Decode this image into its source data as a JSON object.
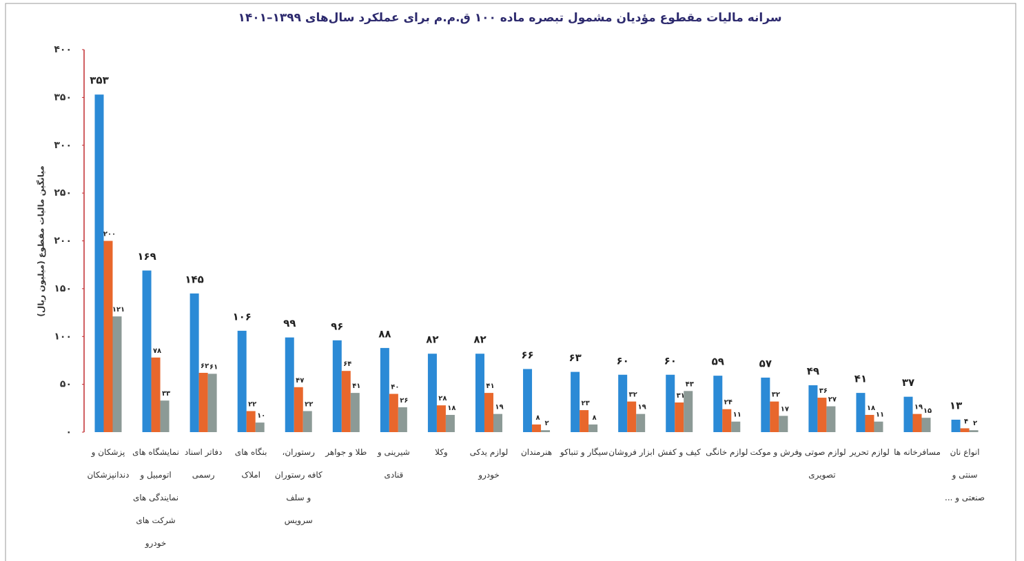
{
  "chart_data": {
    "type": "bar",
    "title": "سرانه مالیات مقطوع مؤدیان مشمول تبصره ماده ۱۰۰ ق.م.م برای عملکرد سال‌های ۱۳۹۹–۱۴۰۱",
    "y_label": "میانگین مالیات مقطوع (میلیون ریال)",
    "categories": [
      "پزشکان و دندانپزشکان",
      "نمایشگاه های اتومبیل و نمایندگی های شرکت های خودرو",
      "دفاتر اسناد رسمی",
      "بنگاه های املاک",
      "رستوران، کافه رستوران و سلف سرویس",
      "طلا و جواهر",
      "شیرینی و قنادی",
      "وکلا",
      "لوازم یدکی خودرو",
      "هنرمندان",
      "سیگار و تنباکو",
      "ابزار فروشان",
      "کیف و کفش",
      "لوازم خانگی",
      "فرش و موکت",
      "لوازم صوتی و تصویری",
      "لوازم تحریر",
      "مسافرخانه ها",
      "انواع نان سنتی و صنعتی و ..."
    ],
    "series": [
      {
        "color": "#2b8ad6",
        "values": [
          353,
          169,
          145,
          106,
          99,
          96,
          88,
          82,
          82,
          66,
          63,
          60,
          60,
          59,
          57,
          49,
          41,
          37,
          13
        ],
        "value_labels": [
          "۳۵۳",
          "۱۶۹",
          "۱۴۵",
          "۱۰۶",
          "۹۹",
          "۹۶",
          "۸۸",
          "۸۲",
          "۸۲",
          "۶۶",
          "۶۳",
          "۶۰",
          "۶۰",
          "۵۹",
          "۵۷",
          "۴۹",
          "۴۱",
          "۳۷",
          "۱۳"
        ]
      },
      {
        "color": "#e8672c",
        "values": [
          200,
          78,
          62,
          22,
          47,
          64,
          40,
          28,
          41,
          8,
          23,
          32,
          31,
          24,
          32,
          36,
          18,
          19,
          4
        ],
        "value_labels": [
          "۲۰۰",
          "۷۸",
          "۶۲",
          "۲۲",
          "۴۷",
          "۶۴",
          "۴۰",
          "۲۸",
          "۴۱",
          "۸",
          "۲۳",
          "۳۲",
          "۳۱",
          "۲۴",
          "۳۲",
          "۳۶",
          "۱۸",
          "۱۹",
          "۴"
        ]
      },
      {
        "color": "#8c9a96",
        "values": [
          121,
          33,
          61,
          10,
          22,
          41,
          26,
          18,
          19,
          2,
          8,
          19,
          43,
          11,
          17,
          27,
          11,
          15,
          2
        ],
        "value_labels": [
          "۱۲۱",
          "۳۳",
          "۶۱",
          "۱۰",
          "۲۲",
          "۴۱",
          "۲۶",
          "۱۸",
          "۱۹",
          "۲",
          "۸",
          "۱۹",
          "۴۳",
          "۱۱",
          "۱۷",
          "۲۷",
          "۱۱",
          "۱۵",
          "۲"
        ]
      }
    ],
    "ylim": [
      0,
      400
    ],
    "yticks": [
      {
        "value": 0,
        "label": "۰"
      },
      {
        "value": 50,
        "label": "۵۰"
      },
      {
        "value": 100,
        "label": "۱۰۰"
      },
      {
        "value": 150,
        "label": "۱۵۰"
      },
      {
        "value": 200,
        "label": "۲۰۰"
      },
      {
        "value": 250,
        "label": "۲۵۰"
      },
      {
        "value": 300,
        "label": "۳۰۰"
      },
      {
        "value": 350,
        "label": "۳۵۰"
      },
      {
        "value": 400,
        "label": "۴۰۰"
      }
    ],
    "grid": false
  }
}
